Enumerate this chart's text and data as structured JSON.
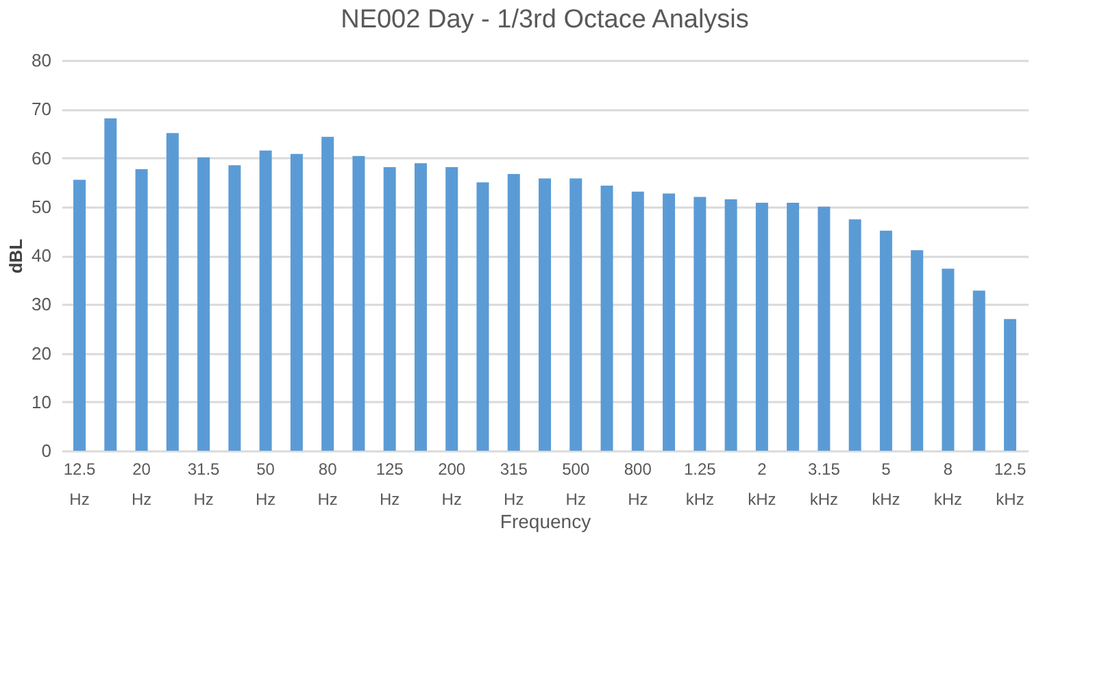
{
  "chart_data": {
    "type": "bar",
    "title": "NE002 Day - 1/3rd Octace Analysis",
    "xlabel": "Frequency",
    "ylabel": "dBL",
    "categories": [
      "12.5 Hz",
      null,
      "20 Hz",
      null,
      "31.5 Hz",
      null,
      "50 Hz",
      null,
      "80 Hz",
      null,
      "125 Hz",
      null,
      "200 Hz",
      null,
      "315 Hz",
      null,
      "500 Hz",
      null,
      "800 Hz",
      null,
      "1.25 kHz",
      null,
      "2 kHz",
      null,
      "3.15 kHz",
      null,
      "5 kHz",
      null,
      "8 kHz",
      null,
      "12.5 kHz"
    ],
    "values": [
      55.5,
      68.1,
      57.7,
      65.1,
      60.1,
      58.5,
      61.5,
      60.8,
      64.3,
      60.4,
      58.1,
      58.9,
      58.1,
      55.0,
      56.7,
      55.8,
      55.8,
      54.3,
      53.1,
      52.7,
      52.0,
      51.5,
      50.8,
      50.8,
      50.0,
      47.4,
      45.1,
      41.1,
      37.3,
      32.8,
      27.0
    ],
    "color": "#5b9bd5",
    "ylim": [
      0,
      80
    ],
    "yticks": [
      0,
      10,
      20,
      30,
      40,
      50,
      60,
      70,
      80
    ],
    "grid": "y"
  }
}
